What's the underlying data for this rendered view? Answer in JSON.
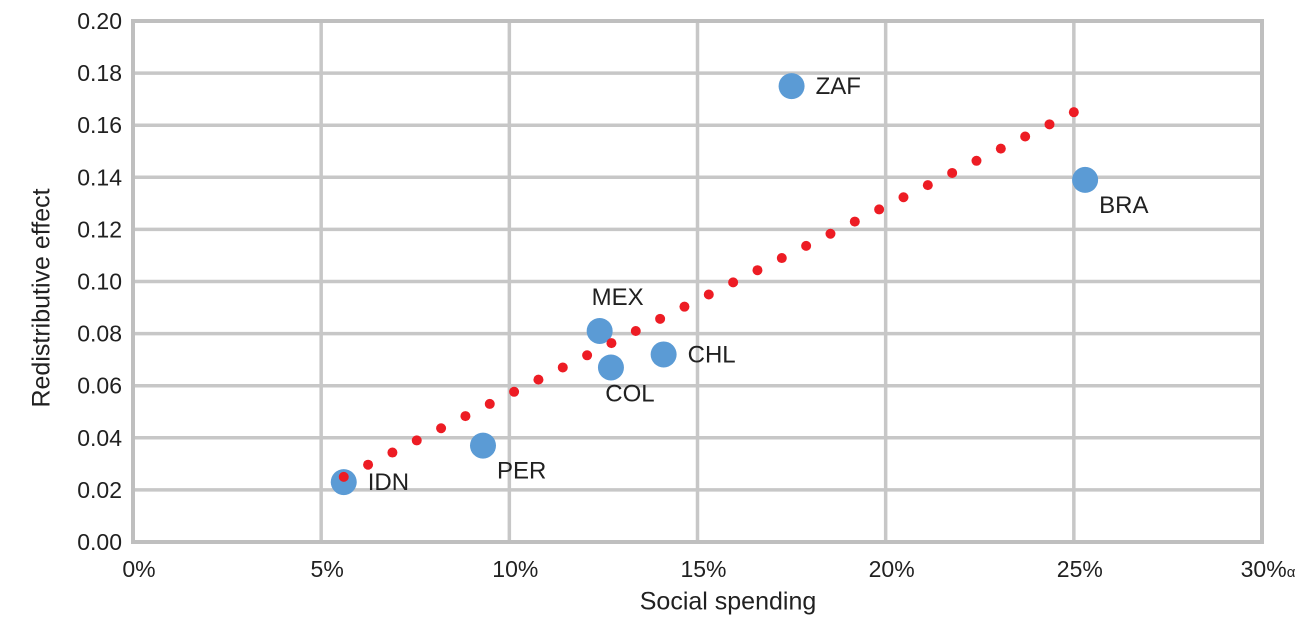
{
  "chart_data": {
    "type": "scatter",
    "title": "",
    "xlabel": "Social spending",
    "ylabel": "Redistributive effect",
    "xlim": [
      0,
      30
    ],
    "ylim": [
      0.0,
      0.2
    ],
    "x_unit": "percent",
    "grid": true,
    "legend": "none",
    "x_ticks": {
      "values": [
        0,
        5,
        10,
        15,
        20,
        25,
        30
      ],
      "labels": [
        "0%",
        "5%",
        "10%",
        "15%",
        "20%",
        "25%",
        "30%"
      ]
    },
    "x_axis_footnote_marker": "α",
    "y_ticks": {
      "values": [
        0,
        0.02,
        0.04,
        0.06,
        0.08,
        0.1,
        0.12,
        0.14,
        0.16,
        0.18,
        0.2
      ],
      "labels": [
        "0.00",
        "0.02",
        "0.04",
        "0.06",
        "0.08",
        "0.10",
        "0.12",
        "0.14",
        "0.16",
        "0.18",
        "0.20"
      ]
    },
    "points": [
      {
        "label": "IDN",
        "x": 5.6,
        "y": 0.023,
        "label_placement": "right"
      },
      {
        "label": "PER",
        "x": 9.3,
        "y": 0.037,
        "label_placement": "below-right"
      },
      {
        "label": "MEX",
        "x": 12.4,
        "y": 0.081,
        "label_placement": "above"
      },
      {
        "label": "COL",
        "x": 12.7,
        "y": 0.067,
        "label_placement": "below"
      },
      {
        "label": "CHL",
        "x": 14.1,
        "y": 0.072,
        "label_placement": "right"
      },
      {
        "label": "ZAF",
        "x": 17.5,
        "y": 0.175,
        "label_placement": "right"
      },
      {
        "label": "BRA",
        "x": 25.3,
        "y": 0.139,
        "label_placement": "below-right"
      }
    ],
    "trendline": {
      "style": "dotted",
      "x_start": 5.6,
      "y_start": 0.025,
      "x_end": 25.0,
      "y_end": 0.165,
      "dot_count": 31
    },
    "colors": {
      "points": "#5B9BD5",
      "trendline": "#ED1C24",
      "gridlines": "#C7C7C7",
      "border": "#BFBFBF",
      "text": "#212121"
    }
  }
}
